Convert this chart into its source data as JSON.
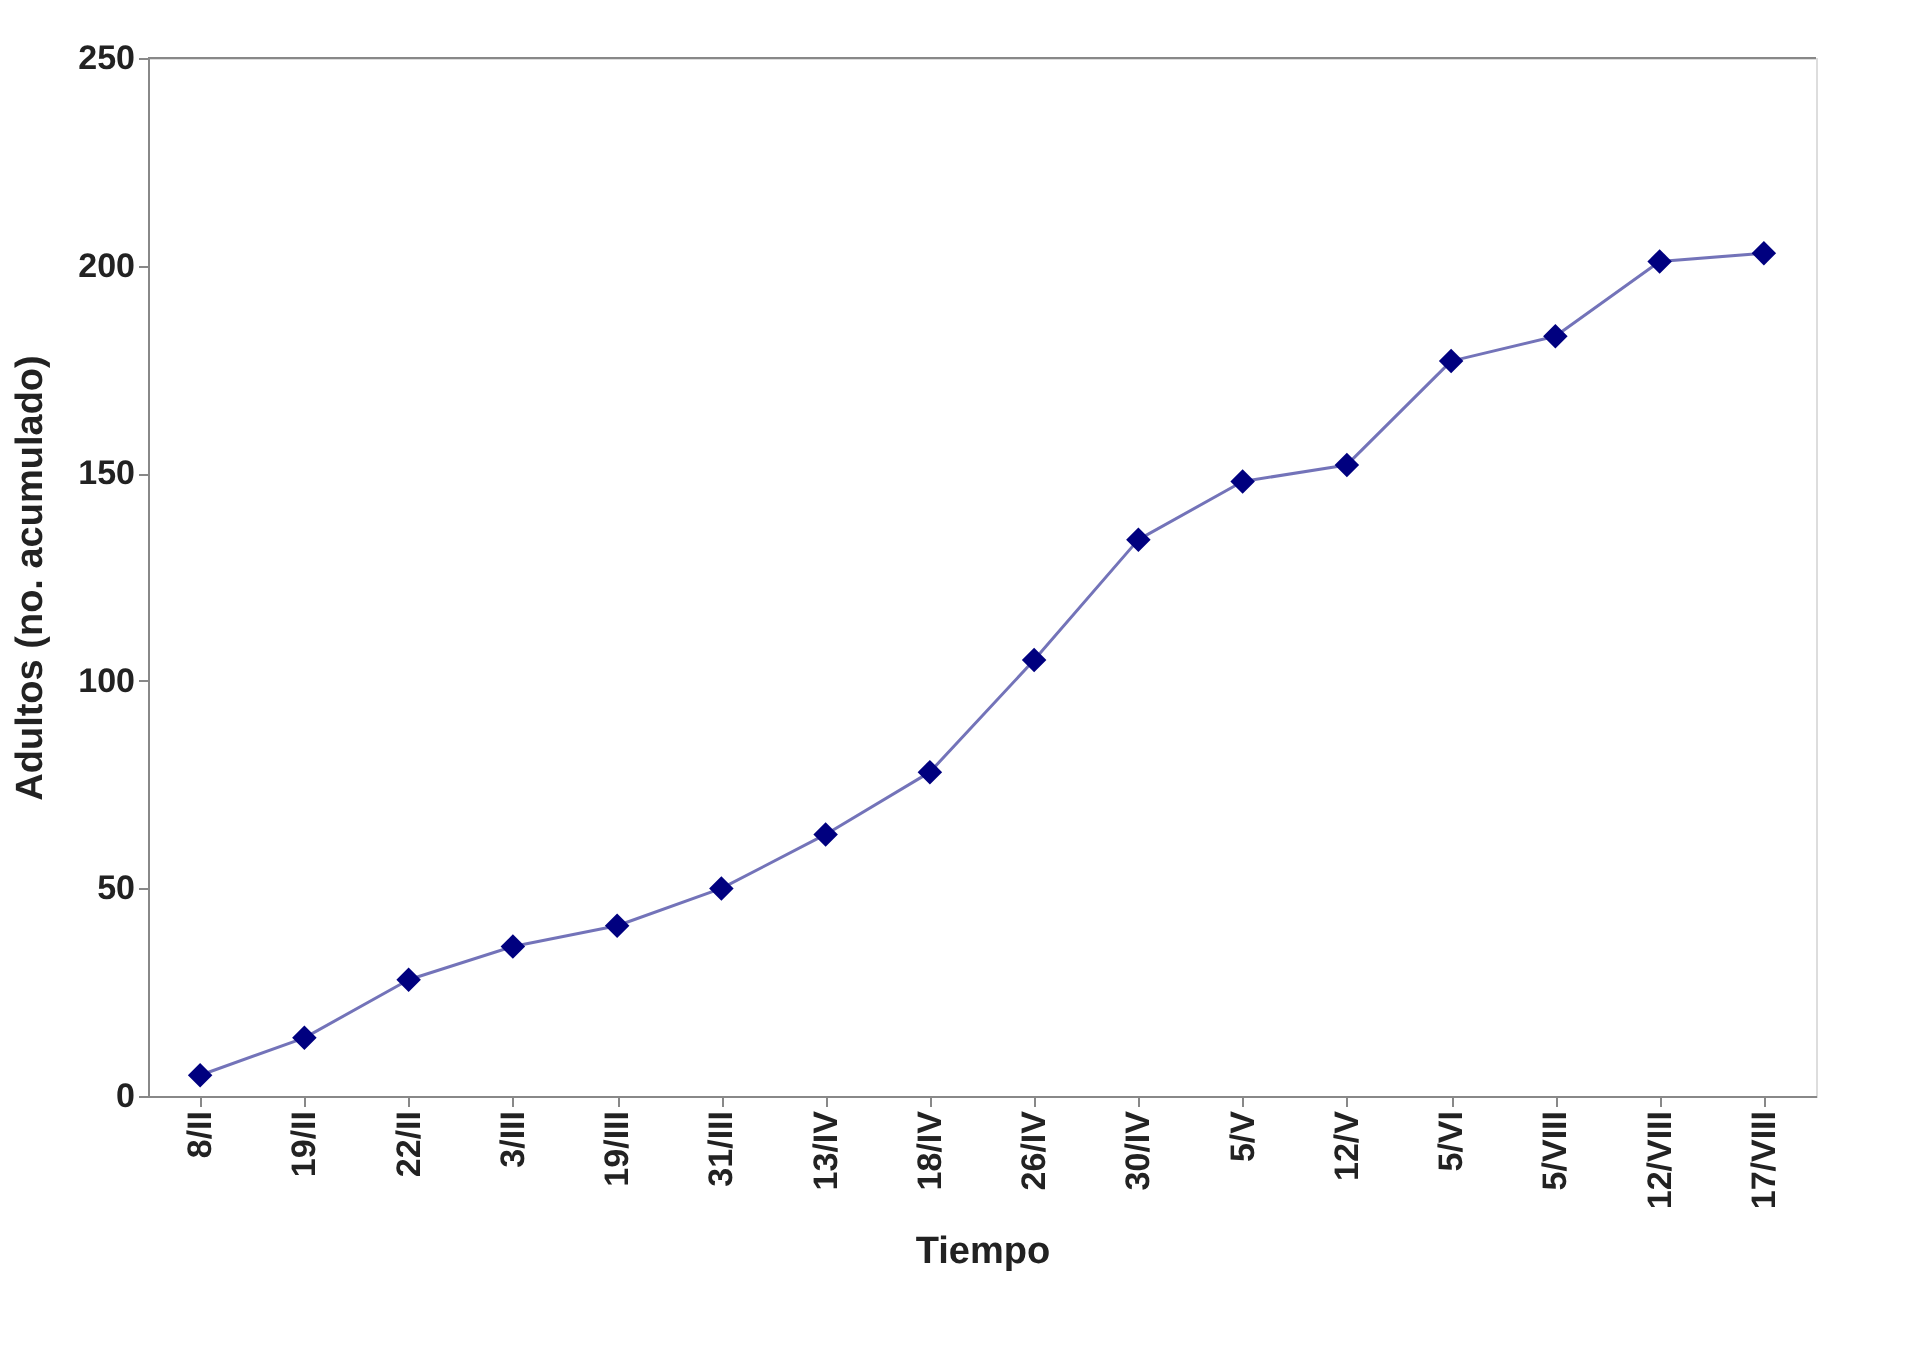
{
  "chart_data": {
    "type": "line",
    "xlabel": "Tiempo",
    "ylabel": "Adultos (no. acumulado)",
    "categories": [
      "8/II",
      "19/II",
      "22/II",
      "3/III",
      "19/III",
      "31/III",
      "13/IV",
      "18/IV",
      "26/IV",
      "30/IV",
      "5/V",
      "12/V",
      "5/VI",
      "5/VIII",
      "12/VIII",
      "17/VIII"
    ],
    "series": [
      {
        "color": "#00007f",
        "values": [
          5,
          14,
          28,
          36,
          41,
          50,
          63,
          78,
          105,
          134,
          148,
          152,
          177,
          183,
          201,
          203
        ]
      }
    ],
    "ylim": [
      0,
      250
    ],
    "yticks": [
      0,
      50,
      100,
      150,
      200,
      250
    ],
    "grid": false,
    "marker": "diamond",
    "line_style": "solid"
  }
}
